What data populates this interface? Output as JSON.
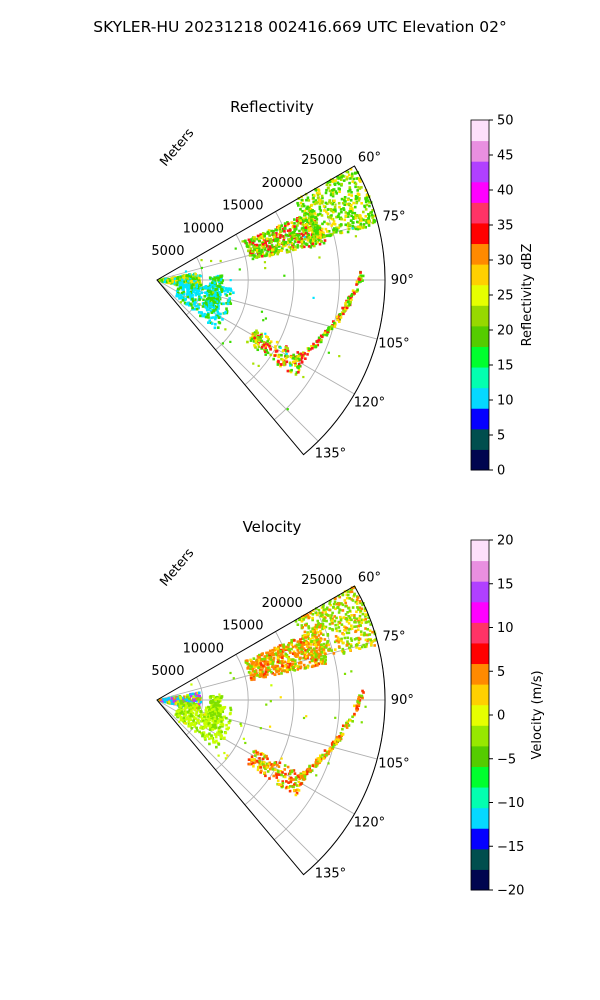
{
  "figure": {
    "title": "SKYLER-HU  20231218  002416.669 UTC Elevation 02°"
  },
  "chart_data": [
    {
      "type": "polar_sector",
      "title": "Reflectivity",
      "radial_label": "Meters",
      "r_ticks": [
        5000,
        10000,
        15000,
        20000,
        25000
      ],
      "r_max": 25000,
      "theta_ticks": [
        "60°",
        "75°",
        "90°",
        "105°",
        "120°",
        "135°"
      ],
      "theta_range_deg": [
        60,
        140
      ],
      "grid": true,
      "colorbar": {
        "label": "Reflectivity dBZ",
        "min": 0,
        "max": 50,
        "ticks": [
          0,
          5,
          10,
          15,
          20,
          25,
          30,
          35,
          40,
          45,
          50
        ],
        "colors": [
          "#00054f",
          "#004e4e",
          "#0500ff",
          "#05d8ff",
          "#03ffb0",
          "#00ff2e",
          "#55cc00",
          "#97d800",
          "#e6ff00",
          "#ffd000",
          "#ff8a00",
          "#ff0000",
          "#ff3366",
          "#ff00ff",
          "#b040ff",
          "#e98fe0",
          "#fde0fb"
        ]
      },
      "echo_colors": {
        "weak": "#00e5ff",
        "moderate": "#3ddc00",
        "medium": "#a8e000",
        "strong": "#ffe000",
        "intense": "#ff1a1a"
      }
    },
    {
      "type": "polar_sector",
      "title": "Velocity",
      "radial_label": "Meters",
      "r_ticks": [
        5000,
        10000,
        15000,
        20000,
        25000
      ],
      "r_max": 25000,
      "theta_ticks": [
        "60°",
        "75°",
        "90°",
        "105°",
        "120°",
        "135°"
      ],
      "theta_range_deg": [
        60,
        140
      ],
      "grid": true,
      "colorbar": {
        "label": "Velocity (m/s)",
        "min": -20,
        "max": 20,
        "ticks": [
          -20,
          -15,
          -10,
          -5,
          0,
          5,
          10,
          15,
          20
        ],
        "colors": [
          "#00054f",
          "#004e4e",
          "#0500ff",
          "#05d8ff",
          "#03ffb0",
          "#00ff2e",
          "#55cc00",
          "#97e800",
          "#e6ff00",
          "#ffd000",
          "#ff8a00",
          "#ff0000",
          "#ff3366",
          "#ff00ff",
          "#b040ff",
          "#e98fe0",
          "#fde0fb"
        ]
      },
      "echo_colors": {
        "weak": "#c8ff00",
        "moderate": "#7ee000",
        "medium": "#ffe000",
        "strong": "#ff8800",
        "intense": "#ff3300",
        "inbound": "#00d0ff",
        "outbound": "#c030ff"
      }
    }
  ]
}
